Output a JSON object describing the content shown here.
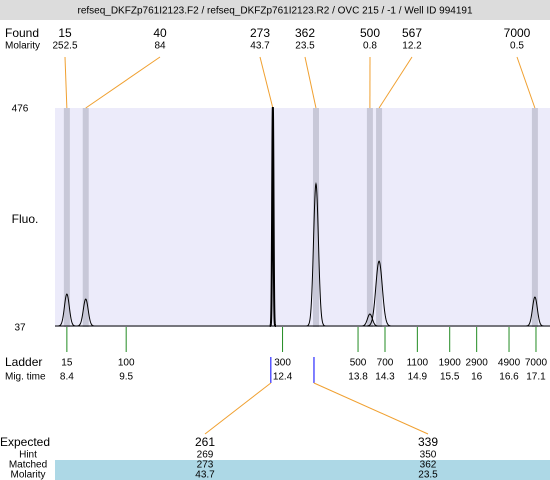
{
  "title": "refseq_DKFZp761I2123.F2 / refseq_DKFZp761I2123.R2 / OVC 215 / -1 / Well ID 994191",
  "chart_data": {
    "type": "electropherogram",
    "y_label": "Fluo.",
    "xlim": [
      8.18,
      17.36
    ],
    "ylim": [
      37,
      476
    ],
    "yticks": [
      37,
      476
    ],
    "found": {
      "label": "Found",
      "molarity_label": "Molarity",
      "sizes": [
        15,
        40,
        273,
        362,
        500,
        567,
        7000
      ],
      "molarity": [
        252.5,
        84,
        43.7,
        23.5,
        0.8,
        12.2,
        0.5
      ],
      "times": [
        8.4,
        8.75,
        12.22,
        13.02,
        14.02,
        14.19,
        17.08
      ],
      "heights": [
        101,
        91,
        476,
        322,
        61,
        167,
        95
      ]
    },
    "ladder": {
      "label": "Ladder",
      "time_label": "Mig. time",
      "sizes": [
        15,
        100,
        300,
        500,
        700,
        1100,
        1900,
        2900,
        4900,
        7000
      ],
      "times": [
        8.4,
        9.5,
        12.4,
        13.8,
        14.3,
        14.9,
        15.5,
        16,
        16.6,
        17.1
      ]
    },
    "expected": {
      "label": "Expected",
      "hint_label": "Hint",
      "matched_label": "Matched",
      "molarity_label": "Molarity",
      "values": [
        261,
        339
      ],
      "hint": [
        269,
        350
      ],
      "matched": [
        273,
        362
      ],
      "molarity": [
        43.7,
        23.5
      ]
    }
  }
}
